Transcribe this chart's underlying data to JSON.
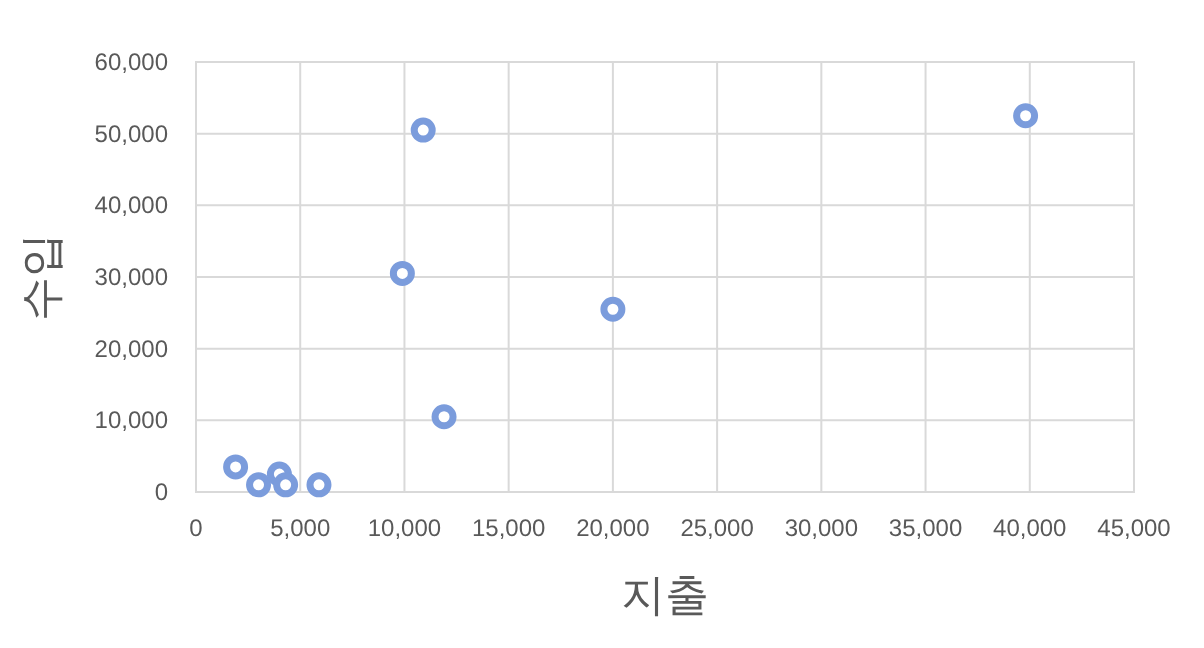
{
  "chart_data": {
    "type": "scatter",
    "xlabel": "지출",
    "ylabel": "수입",
    "x": [
      1900,
      3000,
      4000,
      4300,
      5900,
      9900,
      10900,
      11900,
      20000,
      39800
    ],
    "series": [
      {
        "color": "#7b9cdc",
        "values": [
          3500,
          1000,
          2500,
          1000,
          1000,
          30500,
          50500,
          10500,
          25500,
          52500
        ]
      }
    ],
    "xlim": [
      0,
      45000
    ],
    "ylim": [
      0,
      60000
    ],
    "xticks": [
      {
        "value": 0,
        "label": "0"
      },
      {
        "value": 5000,
        "label": "5,000"
      },
      {
        "value": 10000,
        "label": "10,000"
      },
      {
        "value": 15000,
        "label": "15,000"
      },
      {
        "value": 20000,
        "label": "20,000"
      },
      {
        "value": 25000,
        "label": "25,000"
      },
      {
        "value": 30000,
        "label": "30,000"
      },
      {
        "value": 35000,
        "label": "35,000"
      },
      {
        "value": 40000,
        "label": "40,000"
      },
      {
        "value": 45000,
        "label": "45,000"
      }
    ],
    "yticks": [
      {
        "value": 0,
        "label": "0"
      },
      {
        "value": 10000,
        "label": "10,000"
      },
      {
        "value": 20000,
        "label": "20,000"
      },
      {
        "value": 30000,
        "label": "30,000"
      },
      {
        "value": 40000,
        "label": "40,000"
      },
      {
        "value": 50000,
        "label": "50,000"
      },
      {
        "value": 60000,
        "label": "60,000"
      }
    ],
    "grid": true,
    "marker": "circle"
  }
}
